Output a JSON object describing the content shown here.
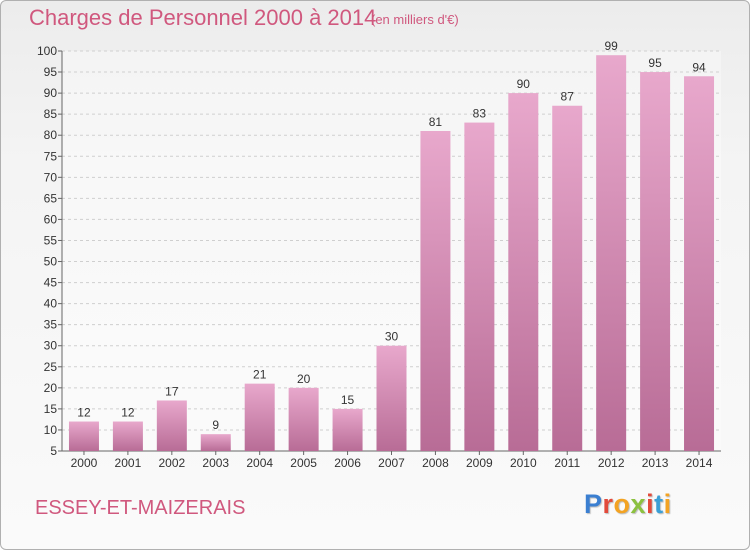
{
  "title": "Charges de Personnel 2000 à 2014",
  "subtitle": "(en milliers d'€)",
  "place": "ESSEY-ET-MAIZERAIS",
  "logo": {
    "letters": [
      "P",
      "r",
      "o",
      "x",
      "i",
      "t",
      "i"
    ]
  },
  "colors": {
    "bar_top": "#e8a8cc",
    "bar_bottom": "#b86c96",
    "title": "#d0587e",
    "grid": "#cfcfcf"
  },
  "chart_data": {
    "type": "bar",
    "categories": [
      "2000",
      "2001",
      "2002",
      "2003",
      "2004",
      "2005",
      "2006",
      "2007",
      "2008",
      "2009",
      "2010",
      "2011",
      "2012",
      "2013",
      "2014"
    ],
    "values": [
      12,
      12,
      17,
      9,
      21,
      20,
      15,
      30,
      81,
      83,
      90,
      87,
      99,
      95,
      94
    ],
    "ylim": [
      5,
      100
    ],
    "yticks": [
      5,
      10,
      15,
      20,
      25,
      30,
      35,
      40,
      45,
      50,
      55,
      60,
      65,
      70,
      75,
      80,
      85,
      90,
      95,
      100
    ],
    "grid": true
  }
}
